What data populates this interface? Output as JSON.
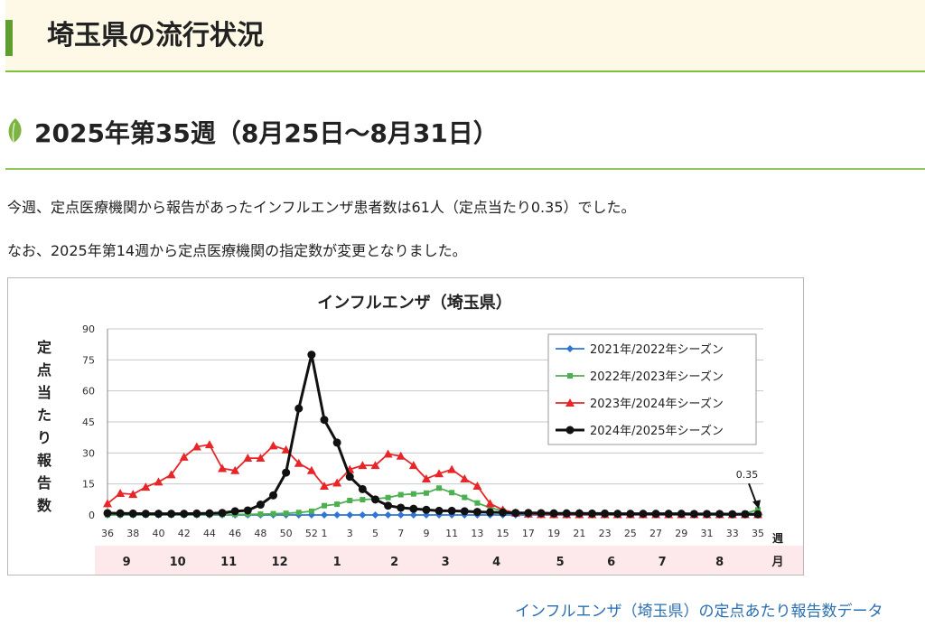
{
  "header": {
    "title": "埼玉県の流行状況"
  },
  "section": {
    "title": "2025年第35週（8月25日〜8月31日）"
  },
  "paragraphs": [
    "今週、定点医療機関から報告があったインフルエンザ患者数は61人（定点当たり0.35）でした。",
    "なお、2025年第14週から定点医療機関の指定数が変更となりました。"
  ],
  "footer": {
    "link": "インフルエンザ（埼玉県）の定点あたり報告数データ"
  },
  "chart_data": {
    "type": "line",
    "title": "インフルエンザ（埼玉県）",
    "ylabel": "定点当たり報告数",
    "xlabel": "週",
    "month_axis_label": "月",
    "ylim": [
      0,
      90
    ],
    "yticks": [
      0,
      15,
      30,
      45,
      60,
      75,
      90
    ],
    "x": [
      36,
      37,
      38,
      39,
      40,
      41,
      42,
      43,
      44,
      45,
      46,
      47,
      48,
      49,
      50,
      51,
      52,
      1,
      2,
      3,
      4,
      5,
      6,
      7,
      8,
      9,
      10,
      11,
      12,
      13,
      14,
      15,
      16,
      17,
      18,
      19,
      20,
      21,
      22,
      23,
      24,
      25,
      26,
      27,
      28,
      29,
      30,
      31,
      32,
      33,
      34,
      35
    ],
    "x_tick_labels": [
      36,
      38,
      40,
      42,
      44,
      46,
      48,
      50,
      52,
      1,
      3,
      5,
      7,
      9,
      11,
      13,
      15,
      17,
      19,
      21,
      23,
      25,
      27,
      29,
      31,
      33,
      35
    ],
    "months": [
      {
        "label": "9",
        "center_index": 1.5
      },
      {
        "label": "10",
        "center_index": 5.5
      },
      {
        "label": "11",
        "center_index": 9.5
      },
      {
        "label": "12",
        "center_index": 13.5
      },
      {
        "label": "1",
        "center_index": 18
      },
      {
        "label": "2",
        "center_index": 22.5
      },
      {
        "label": "3",
        "center_index": 26.5
      },
      {
        "label": "4",
        "center_index": 30.5
      },
      {
        "label": "5",
        "center_index": 35.5
      },
      {
        "label": "6",
        "center_index": 39.5
      },
      {
        "label": "7",
        "center_index": 43.5
      },
      {
        "label": "8",
        "center_index": 48
      }
    ],
    "legend_position": "top-right",
    "grid": true,
    "annotation": {
      "text": "0.35",
      "series_index": 3,
      "point_index": 51
    },
    "series": [
      {
        "name": "2021年/2022年シーズン",
        "color": "#2e75d6",
        "marker": "diamond",
        "values": [
          0,
          0,
          0,
          0,
          0,
          0,
          0,
          0,
          0,
          0,
          0,
          0,
          0,
          0,
          0,
          0,
          0,
          0,
          0,
          0,
          0,
          0,
          0,
          0,
          0,
          0,
          0,
          0,
          0,
          0,
          0,
          0,
          0,
          0,
          0,
          0,
          0,
          0,
          0,
          0,
          0,
          0,
          0,
          0,
          0,
          0,
          0,
          0,
          0,
          0,
          0,
          0
        ]
      },
      {
        "name": "2022年/2023年シーズン",
        "color": "#4caf50",
        "marker": "square",
        "values": [
          0.1,
          0.1,
          0.1,
          0.1,
          0.1,
          0.1,
          0.1,
          0.1,
          0.2,
          0.2,
          0.2,
          0.3,
          0.4,
          0.6,
          0.8,
          1.2,
          1.8,
          4.5,
          5.2,
          7,
          7.4,
          7.8,
          8.4,
          9.8,
          10.2,
          10.6,
          13,
          10.8,
          8.5,
          5.8,
          3.5,
          2,
          1.2,
          0.8,
          0.6,
          0.5,
          0.4,
          0.4,
          0.3,
          0.3,
          0.3,
          0.3,
          0.3,
          0.3,
          0.3,
          0.3,
          0.3,
          0.3,
          0.3,
          0.4,
          0.8,
          2.5
        ]
      },
      {
        "name": "2023年/2024年シーズン",
        "color": "#e8262a",
        "marker": "triangle",
        "values": [
          5.5,
          10.5,
          10,
          13.5,
          16,
          19.5,
          28,
          33,
          34,
          22.5,
          21.5,
          27.5,
          27.5,
          33.5,
          31.5,
          25,
          21.5,
          14,
          15.5,
          22,
          24,
          24,
          29.5,
          28.5,
          24,
          17.5,
          20,
          22,
          17.5,
          14,
          5.5,
          2.5,
          1,
          0.5,
          0.3,
          0.2,
          0.2,
          0.2,
          0.2,
          0.2,
          0.2,
          0.2,
          0.2,
          0.2,
          0.2,
          0.2,
          0.2,
          0.2,
          0.2,
          0.2,
          0.2,
          0.2
        ]
      },
      {
        "name": "2024年/2025年シーズン",
        "color": "#111111",
        "marker": "circle",
        "values": [
          0.9,
          0.8,
          0.7,
          0.6,
          0.6,
          0.6,
          0.6,
          0.7,
          0.8,
          1,
          1.8,
          2.2,
          5,
          9.5,
          20.5,
          51.5,
          77.5,
          46,
          35,
          18.5,
          12.5,
          7.5,
          4.5,
          3.5,
          3,
          2.5,
          2,
          2,
          1.8,
          1.5,
          1.3,
          1.2,
          1,
          1,
          0.9,
          0.8,
          0.8,
          0.8,
          0.7,
          0.7,
          0.6,
          0.6,
          0.6,
          0.6,
          0.6,
          0.6,
          0.5,
          0.5,
          0.5,
          0.4,
          0.4,
          0.35
        ]
      }
    ]
  }
}
